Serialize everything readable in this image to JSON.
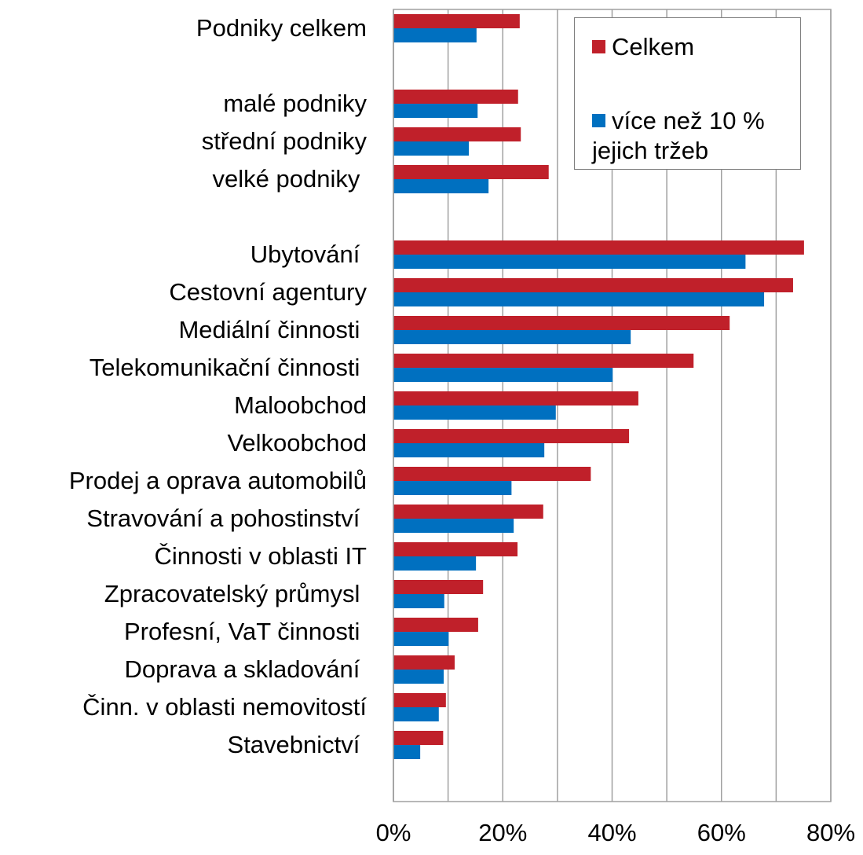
{
  "chart_data": {
    "type": "bar",
    "orientation": "horizontal",
    "categories": [
      "Podniky celkem",
      null,
      "malé podniky",
      "střední podniky",
      "velké podniky ",
      null,
      "Ubytování ",
      "Cestovní agentury",
      "Mediální činnosti ",
      "Telekomunikační činnosti ",
      "Maloobchod",
      "Velkoobchod",
      "Prodej a oprava automobilů",
      "Stravování a pohostinství ",
      "Činnosti v oblasti IT",
      "Zpracovatelský průmysl ",
      "Profesní, VaT činnosti ",
      "Doprava a skladování ",
      "Činn. v oblasti nemovitostí",
      "Stavebnictví "
    ],
    "series": [
      {
        "name": "Celkem",
        "color": "#c0202a",
        "values": [
          23.1,
          null,
          22.8,
          23.3,
          28.4,
          null,
          75.1,
          73.1,
          61.5,
          54.9,
          44.8,
          43.1,
          36.1,
          27.4,
          22.7,
          16.4,
          15.5,
          11.2,
          9.6,
          9.1
        ]
      },
      {
        "name": "více než 10 % jejich tržeb",
        "color": "#0070c0",
        "values": [
          15.2,
          null,
          15.4,
          13.8,
          17.4,
          null,
          64.4,
          67.8,
          43.4,
          40.1,
          29.7,
          27.6,
          21.6,
          22.0,
          15.1,
          9.3,
          10.1,
          9.2,
          8.3,
          4.9
        ]
      }
    ],
    "xlim": [
      0,
      80
    ],
    "xticks": [
      {
        "value": 0,
        "label": "0%"
      },
      {
        "value": 20,
        "label": "20%"
      },
      {
        "value": 40,
        "label": "40%"
      },
      {
        "value": 60,
        "label": "60%"
      },
      {
        "value": 80,
        "label": "80%"
      }
    ],
    "minor_grid": [
      10,
      30,
      50,
      70
    ],
    "grid": true,
    "legend": "upper right"
  }
}
